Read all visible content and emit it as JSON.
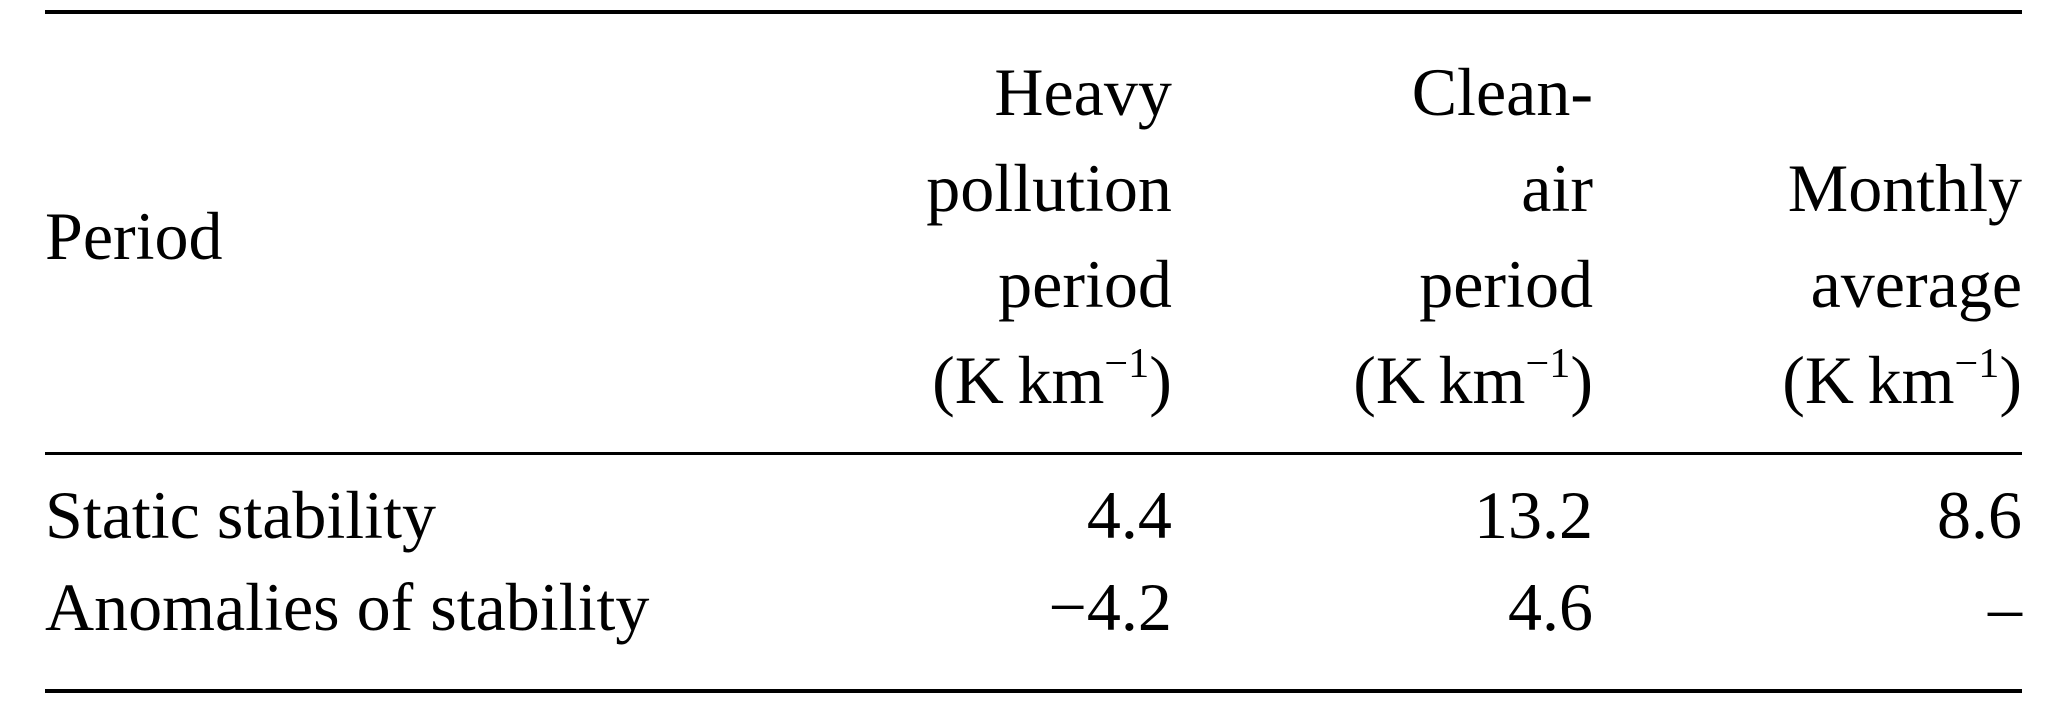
{
  "table": {
    "header": {
      "period_label": "Period",
      "columns": [
        {
          "lines": [
            "Heavy",
            "pollution",
            "period"
          ]
        },
        {
          "lines": [
            "Clean-",
            "air",
            "period"
          ]
        },
        {
          "lines": [
            "Monthly",
            "average"
          ]
        }
      ],
      "unit": {
        "prefix": "(K km",
        "superscript": "−1",
        "suffix": ")"
      }
    },
    "rows": [
      {
        "label": "Static stability",
        "values": [
          "4.4",
          "13.2",
          "8.6"
        ]
      },
      {
        "label": "Anomalies of stability",
        "values": [
          "−4.2",
          "4.6",
          "–"
        ]
      }
    ]
  }
}
